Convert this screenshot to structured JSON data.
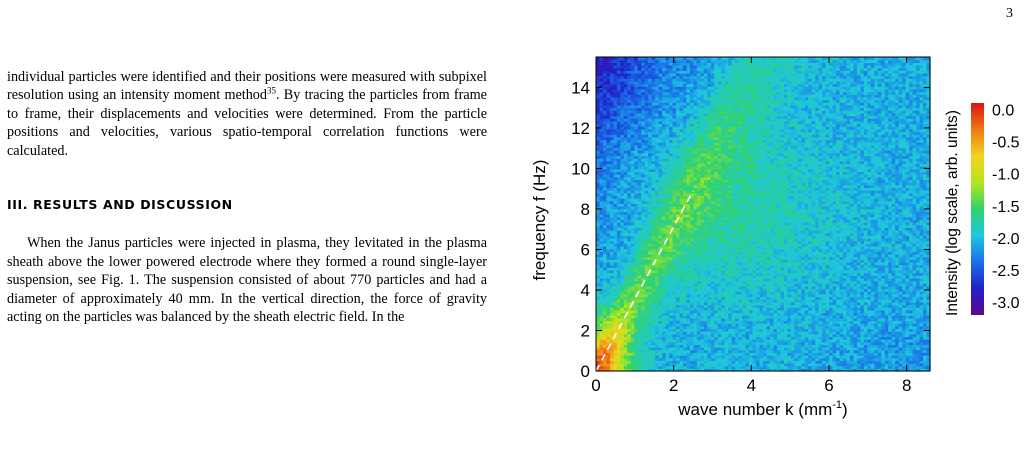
{
  "page": {
    "number": "3"
  },
  "left_column": {
    "paragraph1": {
      "part1": "individual particles were identified and their positions were measured with subpixel resolution using an intensity moment method",
      "citation": "35",
      "part2": ". By tracing the particles from frame to frame, their displacements and velocities were determined. From the particle positions and velocities, various spatio-temporal correlation functions were calculated."
    },
    "section_heading": "III.   RESULTS AND DISCUSSION",
    "paragraph2": "When the Janus particles were injected in plasma, they levitated in the plasma sheath above the lower powered electrode where they formed a round single-layer suspension, see Fig. 1. The suspension consisted of about 770 particles and had a diameter of approximately 40 mm. In the vertical direction, the force of gravity acting on the particles was balanced by the sheath electric field. In the"
  },
  "chart_data": {
    "type": "heatmap",
    "xlabel": "wave number k (mm",
    "xlabel_sup": "-1",
    "xlabel_tail": ")",
    "ylabel": "frequency f (Hz)",
    "xlim": [
      0,
      8.6
    ],
    "ylim": [
      0,
      15.5
    ],
    "x_ticks": [
      "0",
      "2",
      "4",
      "6",
      "8"
    ],
    "x_tick_values": [
      0,
      2,
      4,
      6,
      8
    ],
    "y_ticks": [
      "0",
      "2",
      "4",
      "6",
      "8",
      "10",
      "12",
      "14"
    ],
    "y_tick_values": [
      0,
      2,
      4,
      6,
      8,
      10,
      12,
      14
    ],
    "colorbar": {
      "label": "Intensity (log scale, arb. units)",
      "ticks": [
        "0.0",
        "-0.5",
        "-1.0",
        "-1.5",
        "-2.0",
        "-2.5",
        "-3.0"
      ],
      "tick_values": [
        0.0,
        -0.5,
        -1.0,
        -1.5,
        -2.0,
        -2.5,
        -3.0
      ],
      "range": [
        -3.2,
        0.1
      ],
      "colors": [
        "#5a0a8c",
        "#2020c8",
        "#1a6fe8",
        "#1ec8e0",
        "#32d26a",
        "#b4e61e",
        "#f5d21e",
        "#f07814",
        "#dc1414"
      ]
    },
    "dashed_line": {
      "from": [
        0,
        0
      ],
      "to": [
        2.5,
        8.9
      ],
      "color": "#ffffff"
    },
    "grid": false
  }
}
